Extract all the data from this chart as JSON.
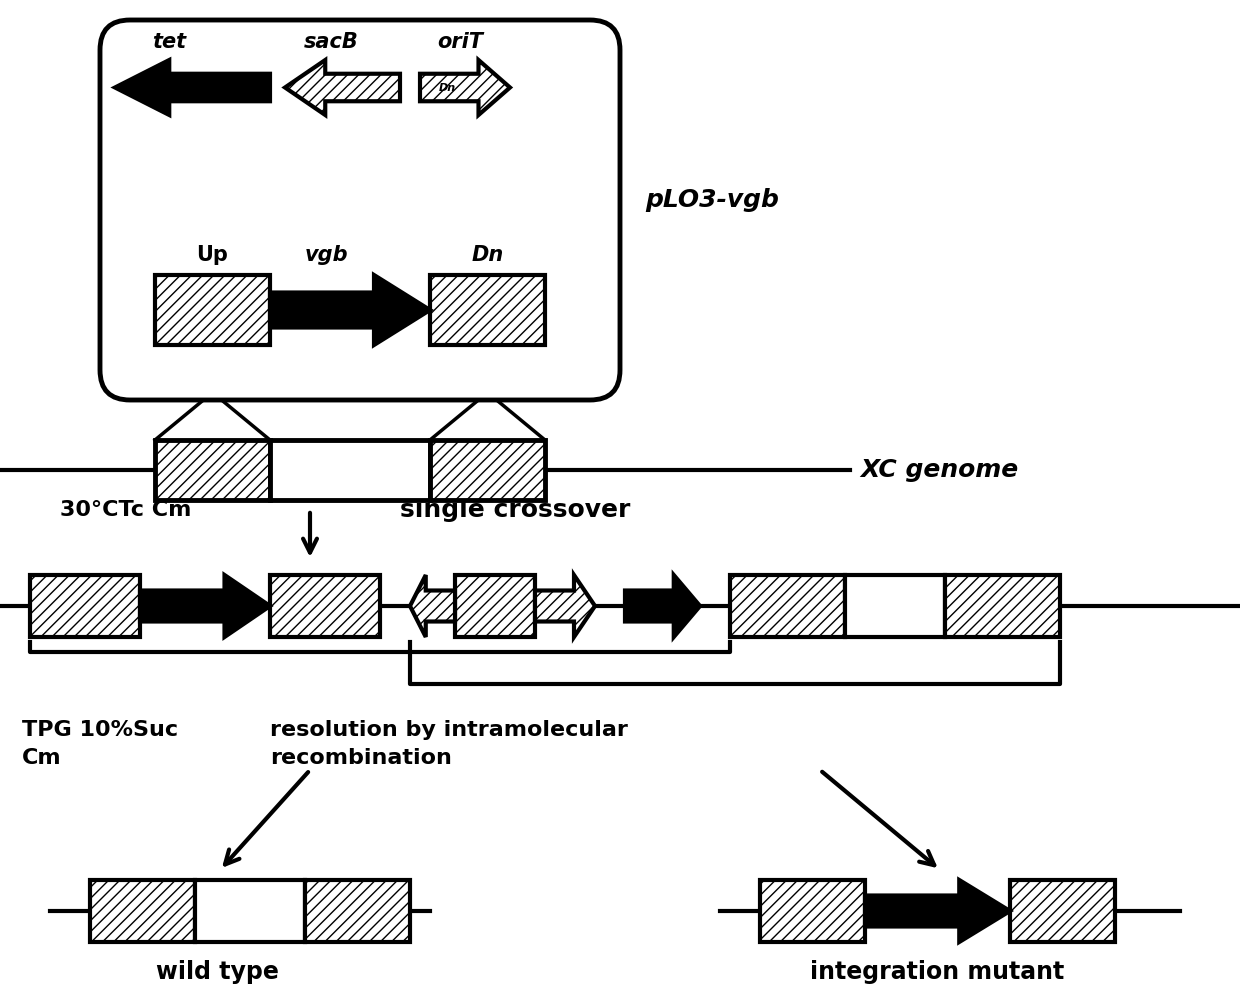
{
  "bg_color": "#ffffff",
  "labels": {
    "tet": "tet",
    "sacB": "sacB",
    "oriT": "oriT",
    "pLO3_vgb": "pLO3-vgb",
    "Up": "Up",
    "vgb": "vgb",
    "Dn": "Dn",
    "XC_genome": "XC genome",
    "step1_left": "30°CTc Cm",
    "step1_right": "single crossover",
    "step2_left": "TPG 10%Suc\nCm",
    "step2_right": "resolution by intramolecular\nrecombination",
    "wild_type": "wild type",
    "integration_mutant": "integration mutant"
  }
}
